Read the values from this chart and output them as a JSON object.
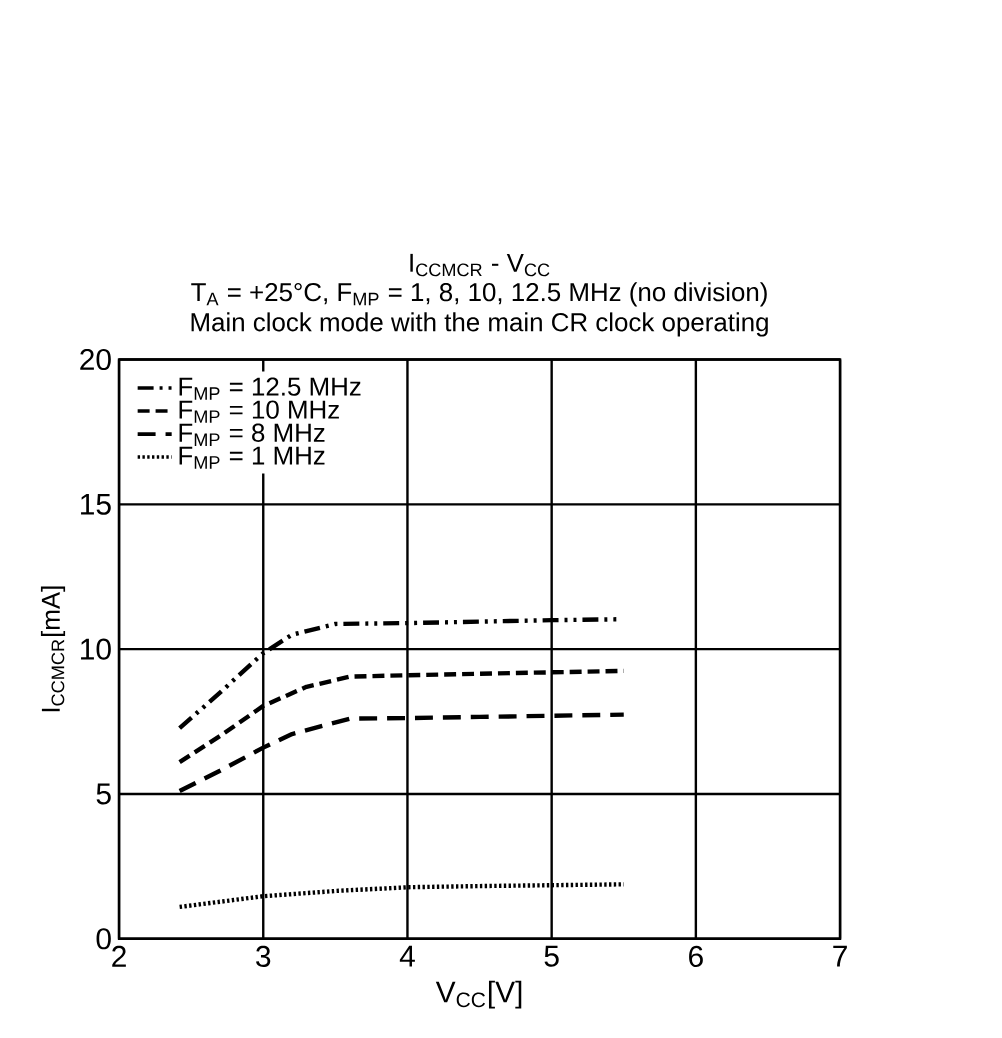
{
  "chart_data": {
    "type": "line",
    "title": "I$_{CCMCR}$ - V$_{CC}$",
    "subtitle": "T$_{A}$ = +25°C, F$_{MP}$ = 1, 8, 10, 12.5 MHz (no division)",
    "annotations": [
      "Main clock mode with the main CR clock operating"
    ],
    "xlabel": "V$_{CC}$[V]",
    "ylabel": "I$_{CCMCR}$[mA]",
    "xlim": [
      2,
      7
    ],
    "ylim": [
      0,
      20
    ],
    "xticks": [
      2,
      3,
      4,
      5,
      6,
      7
    ],
    "yticks": [
      0,
      5,
      10,
      15,
      20
    ],
    "grid": true,
    "legend": "top left",
    "series": [
      {
        "name": "F$_{MP}$ = 12.5 MHz",
        "color": "#000000",
        "line_style": "dashdotdot",
        "x": [
          2.42,
          2.7,
          3.0,
          3.2,
          3.5,
          4.0,
          4.5,
          5.0,
          5.45
        ],
        "values": [
          7.27,
          8.5,
          9.86,
          10.5,
          10.87,
          10.9,
          10.95,
          11.0,
          11.03
        ]
      },
      {
        "name": "F$_{MP}$ = 10 MHz",
        "color": "#000000",
        "line_style": "dashed",
        "x": [
          2.42,
          2.7,
          3.0,
          3.3,
          3.6,
          4.0,
          4.5,
          5.0,
          5.5
        ],
        "values": [
          6.1,
          7.0,
          8.04,
          8.7,
          9.05,
          9.1,
          9.15,
          9.2,
          9.25
        ]
      },
      {
        "name": "F$_{MP}$ = 8 MHz",
        "color": "#000000",
        "line_style": "loosely dashed",
        "x": [
          2.42,
          2.7,
          3.0,
          3.2,
          3.6,
          4.0,
          4.5,
          5.0,
          5.5
        ],
        "values": [
          5.1,
          5.8,
          6.6,
          7.07,
          7.6,
          7.62,
          7.66,
          7.7,
          7.74
        ]
      },
      {
        "name": "F$_{MP}$ = 1 MHz",
        "color": "#000000",
        "line_style": "dotted",
        "x": [
          2.42,
          3.0,
          3.5,
          4.0,
          4.5,
          5.0,
          5.5
        ],
        "values": [
          1.1,
          1.47,
          1.65,
          1.78,
          1.82,
          1.85,
          1.88
        ]
      }
    ]
  }
}
